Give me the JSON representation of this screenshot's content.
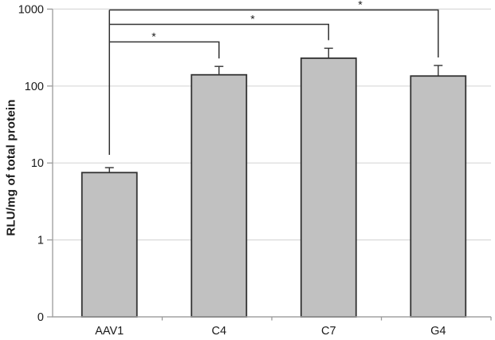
{
  "chart_data": {
    "type": "bar",
    "title": "",
    "ylabel": "RLU/mg of total protein",
    "xlabel": "",
    "y_scale": "log",
    "y_tick_labels": [
      "1000",
      "100",
      "10",
      "1",
      "0"
    ],
    "categories": [
      "AAV1",
      "C4",
      "C7",
      "G4"
    ],
    "values": [
      7.5,
      140,
      230,
      135
    ],
    "errors_upper": [
      8.7,
      180,
      310,
      185
    ],
    "grid": "horizontal",
    "legend": "none",
    "significance": [
      {
        "from": "AAV1",
        "to": "C4",
        "label": "*"
      },
      {
        "from": "AAV1",
        "to": "C7",
        "label": "*"
      },
      {
        "from": "AAV1",
        "to": "G4",
        "label": "*"
      }
    ],
    "colors": {
      "bar_fill": "#c1c1c1",
      "bar_border": "#333333",
      "gridline": "#d9d9d9",
      "axis": "#a3a3a3",
      "tick": "#9a9a9a",
      "bracket": "#333333",
      "text": "#1a1a1a",
      "background": "#ffffff"
    }
  }
}
